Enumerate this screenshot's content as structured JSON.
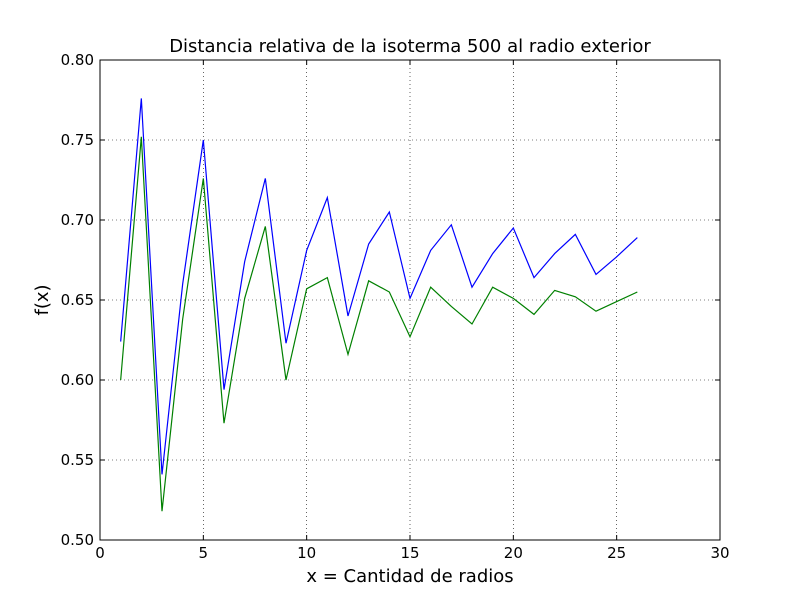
{
  "chart_data": {
    "type": "line",
    "title": "Distancia relativa de la isoterma 500 al radio exterior",
    "xlabel": "x = Cantidad de radios",
    "ylabel": "f(x)",
    "xlim": [
      0,
      30
    ],
    "ylim": [
      0.5,
      0.8
    ],
    "xticks": [
      0,
      5,
      10,
      15,
      20,
      25,
      30
    ],
    "yticks": [
      0.5,
      0.55,
      0.6,
      0.65,
      0.7,
      0.75,
      0.8
    ],
    "xtick_labels": [
      "0",
      "5",
      "10",
      "15",
      "20",
      "25",
      "30"
    ],
    "ytick_labels": [
      "0.50",
      "0.55",
      "0.60",
      "0.65",
      "0.70",
      "0.75",
      "0.80"
    ],
    "grid": true,
    "x": [
      1,
      2,
      3,
      4,
      5,
      6,
      7,
      8,
      9,
      10,
      11,
      12,
      13,
      14,
      15,
      16,
      17,
      18,
      19,
      20,
      21,
      22,
      23,
      24,
      25,
      26
    ],
    "series": [
      {
        "color": "#0000ff",
        "values": [
          0.624,
          0.776,
          0.541,
          0.66,
          0.75,
          0.594,
          0.674,
          0.726,
          0.623,
          0.681,
          0.714,
          0.64,
          0.685,
          0.705,
          0.651,
          0.681,
          0.697,
          0.658,
          0.679,
          0.695,
          0.664,
          0.679,
          0.691,
          0.666,
          0.677,
          0.689
        ]
      },
      {
        "color": "#008000",
        "values": [
          0.6,
          0.752,
          0.518,
          0.638,
          0.726,
          0.573,
          0.651,
          0.696,
          0.6,
          0.657,
          0.664,
          0.616,
          0.662,
          0.655,
          0.627,
          0.658,
          0.646,
          0.635,
          0.658,
          0.651,
          0.641,
          0.656,
          0.652,
          0.643,
          0.649,
          0.655
        ]
      }
    ]
  }
}
